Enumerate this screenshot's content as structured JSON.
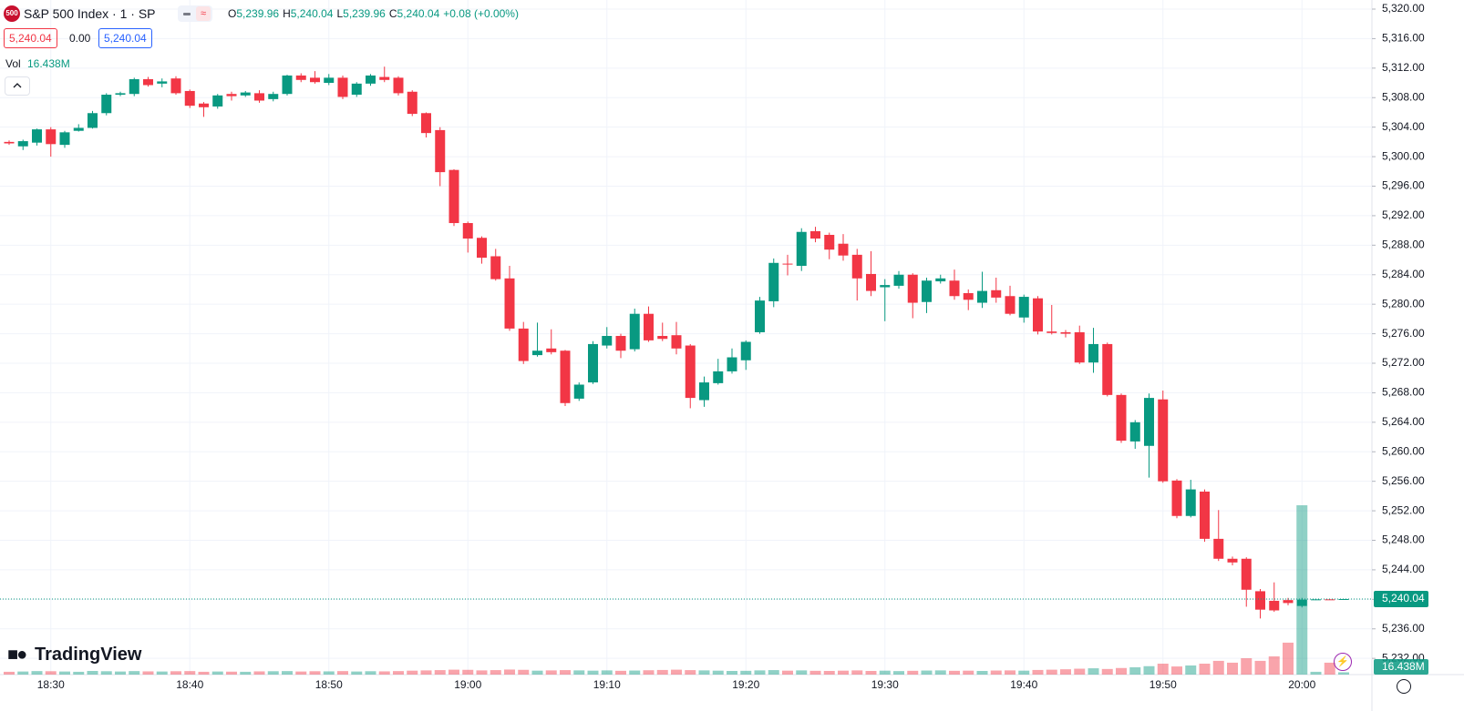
{
  "header": {
    "badge": "500",
    "symbol": "S&P 500 Index · 1 · SP",
    "ohlc": [
      {
        "key": "O",
        "value": "5,239.96"
      },
      {
        "key": "H",
        "value": "5,240.04"
      },
      {
        "key": "L",
        "value": "5,239.96"
      },
      {
        "key": "C",
        "value": "5,240.04"
      }
    ],
    "change": "+0.08 (+0.00%)",
    "bid": "5,240.04",
    "spread": "0.00",
    "ask": "5,240.04",
    "volume_key": "Vol"
  },
  "logo": "TradingView",
  "chart_data": {
    "type": "candlestick",
    "categories": [
      null,
      null,
      null,
      "18:30",
      null,
      null,
      null,
      null,
      null,
      null,
      null,
      null,
      null,
      "18:40",
      null,
      null,
      null,
      null,
      null,
      null,
      null,
      null,
      null,
      "18:50",
      null,
      null,
      null,
      null,
      null,
      null,
      null,
      null,
      null,
      "19:00",
      null,
      null,
      null,
      null,
      null,
      null,
      null,
      null,
      null,
      "19:10",
      null,
      null,
      null,
      null,
      null,
      null,
      null,
      null,
      null,
      "19:20",
      null,
      null,
      null,
      null,
      null,
      null,
      null,
      null,
      null,
      "19:30",
      null,
      null,
      null,
      null,
      null,
      null,
      null,
      null,
      null,
      "19:40",
      null,
      null,
      null,
      null,
      null,
      null,
      null,
      null,
      null,
      "19:50",
      null,
      null,
      null,
      null,
      null,
      null,
      null,
      null,
      null,
      "20:00",
      null,
      null,
      null
    ],
    "open": [
      5302.0,
      5301.4,
      5301.9,
      5303.7,
      5301.6,
      5303.5,
      5303.9,
      5305.9,
      5308.4,
      5308.5,
      5310.5,
      5309.9,
      5310.6,
      5308.9,
      5307.2,
      5306.8,
      5308.5,
      5308.3,
      5308.6,
      5307.8,
      5308.5,
      5311.0,
      5310.7,
      5310.0,
      5310.7,
      5308.4,
      5309.9,
      5310.8,
      5310.7,
      5308.8,
      5305.9,
      5303.6,
      5298.2,
      5291.0,
      5289.0,
      5286.5,
      5283.5,
      5276.7,
      5273.1,
      5274.0,
      5273.7,
      5267.2,
      5269.4,
      5274.4,
      5275.7,
      5273.9,
      5278.7,
      5275.7,
      5275.8,
      5274.4,
      5267.0,
      5269.3,
      5270.9,
      5272.4,
      5276.2,
      5280.4,
      5285.5,
      5285.2,
      5289.9,
      5289.4,
      5288.2,
      5286.7,
      5284.1,
      5282.3,
      5282.5,
      5284.0,
      5280.3,
      5283.1,
      5283.2,
      5281.5,
      5280.2,
      5281.9,
      5281.1,
      5278.2,
      5280.8,
      5276.3,
      5276.2,
      5276.2,
      5272.1,
      5274.6,
      5267.7,
      5261.4,
      5260.8,
      5267.1,
      5256.1,
      5251.3,
      5254.6,
      5248.2,
      5245.5,
      5245.5,
      5241.1,
      5239.8,
      5239.9,
      5239.1,
      5239.96,
      5240.0,
      5239.96
    ],
    "high": [
      5302.2,
      5302.3,
      5303.8,
      5304.0,
      5303.5,
      5304.4,
      5306.2,
      5308.6,
      5308.8,
      5310.7,
      5310.8,
      5310.6,
      5310.9,
      5309.1,
      5307.4,
      5308.5,
      5308.8,
      5308.9,
      5309.0,
      5308.8,
      5311.1,
      5311.3,
      5311.6,
      5311.2,
      5311.0,
      5310.1,
      5311.2,
      5312.2,
      5310.9,
      5309.0,
      5306.0,
      5304.0,
      5298.3,
      5291.2,
      5289.2,
      5287.5,
      5285.2,
      5277.6,
      5277.5,
      5276.6,
      5273.8,
      5269.4,
      5275.0,
      5276.9,
      5276.0,
      5279.4,
      5279.7,
      5277.5,
      5277.6,
      5274.6,
      5270.2,
      5272.6,
      5274.0,
      5275.1,
      5281.0,
      5286.2,
      5286.7,
      5290.3,
      5290.5,
      5289.7,
      5289.5,
      5287.5,
      5287.2,
      5283.4,
      5284.5,
      5284.2,
      5283.6,
      5284.0,
      5284.7,
      5282.0,
      5284.4,
      5283.6,
      5282.5,
      5281.3,
      5281.1,
      5279.9,
      5276.5,
      5277.1,
      5276.8,
      5274.8,
      5267.9,
      5264.3,
      5267.9,
      5268.3,
      5256.3,
      5256.2,
      5254.9,
      5252.1,
      5245.8,
      5245.7,
      5241.4,
      5242.3,
      5240.2,
      5240.2,
      5240.1,
      5240.05,
      5240.04
    ],
    "low": [
      5301.6,
      5300.9,
      5301.5,
      5300.0,
      5301.2,
      5303.4,
      5303.8,
      5305.6,
      5308.2,
      5308.2,
      5309.5,
      5309.4,
      5308.4,
      5306.6,
      5305.4,
      5306.5,
      5307.6,
      5308.1,
      5307.3,
      5307.5,
      5308.3,
      5310.1,
      5309.9,
      5309.7,
      5307.8,
      5308.1,
      5309.6,
      5310.1,
      5308.3,
      5305.5,
      5302.6,
      5296.0,
      5290.6,
      5287.0,
      5285.5,
      5283.2,
      5276.4,
      5271.9,
      5272.9,
      5273.2,
      5266.2,
      5266.9,
      5269.2,
      5274.0,
      5272.7,
      5273.6,
      5274.9,
      5275.0,
      5273.2,
      5265.9,
      5266.1,
      5269.1,
      5270.6,
      5271.1,
      5276.0,
      5279.6,
      5283.9,
      5284.5,
      5288.4,
      5286.1,
      5285.9,
      5280.5,
      5281.1,
      5277.7,
      5282.1,
      5278.1,
      5278.8,
      5282.8,
      5280.6,
      5279.2,
      5279.5,
      5280.2,
      5278.5,
      5277.5,
      5275.9,
      5275.9,
      5275.5,
      5271.9,
      5270.7,
      5267.5,
      5261.2,
      5260.4,
      5256.5,
      5255.8,
      5251.0,
      5251.1,
      5247.8,
      5245.2,
      5244.6,
      5239.0,
      5237.4,
      5238.3,
      5239.2,
      5238.9,
      5239.9,
      5239.95,
      5239.96
    ],
    "close": [
      5301.8,
      5302.1,
      5303.7,
      5301.7,
      5303.3,
      5303.9,
      5305.9,
      5308.4,
      5308.6,
      5310.5,
      5309.7,
      5310.2,
      5308.6,
      5306.9,
      5306.7,
      5308.3,
      5308.2,
      5308.7,
      5307.6,
      5308.5,
      5311.0,
      5310.4,
      5310.1,
      5310.7,
      5308.1,
      5309.9,
      5311.0,
      5310.4,
      5308.6,
      5305.8,
      5303.2,
      5297.9,
      5291.0,
      5288.9,
      5286.3,
      5283.4,
      5276.7,
      5272.3,
      5273.7,
      5273.5,
      5266.6,
      5269.1,
      5274.6,
      5275.7,
      5273.7,
      5278.7,
      5275.1,
      5275.3,
      5274.0,
      5267.3,
      5269.4,
      5270.9,
      5272.8,
      5274.9,
      5280.5,
      5285.6,
      5285.4,
      5289.8,
      5288.9,
      5287.4,
      5286.6,
      5283.5,
      5281.8,
      5282.6,
      5284.0,
      5280.2,
      5283.2,
      5283.5,
      5281.1,
      5280.6,
      5281.8,
      5280.9,
      5278.7,
      5281.0,
      5276.3,
      5276.1,
      5276.0,
      5272.1,
      5274.6,
      5267.7,
      5261.5,
      5264.0,
      5267.3,
      5256.0,
      5251.3,
      5254.9,
      5248.2,
      5245.5,
      5245.0,
      5241.3,
      5238.6,
      5238.5,
      5239.5,
      5239.96,
      5240.0,
      5239.96,
      5240.04
    ],
    "volume": [
      20,
      22,
      25,
      24,
      22,
      20,
      26,
      24,
      22,
      25,
      23,
      22,
      24,
      25,
      20,
      22,
      21,
      20,
      23,
      24,
      25,
      22,
      24,
      23,
      25,
      22,
      24,
      23,
      25,
      28,
      30,
      32,
      35,
      34,
      30,
      32,
      36,
      34,
      28,
      30,
      32,
      30,
      28,
      30,
      27,
      29,
      31,
      33,
      35,
      32,
      30,
      28,
      26,
      27,
      30,
      32,
      28,
      30,
      27,
      26,
      28,
      30,
      26,
      28,
      25,
      27,
      29,
      30,
      27,
      28,
      26,
      29,
      30,
      28,
      33,
      35,
      38,
      42,
      45,
      40,
      47,
      52,
      60,
      78,
      58,
      65,
      78,
      98,
      85,
      117,
      98,
      130,
      228,
      1209,
      20,
      85,
      16.438
    ],
    "volume_label": "16.438M",
    "last_label": "5,240.04",
    "up_color": "#089981",
    "down_color": "#f23645",
    "ylim": [
      5229.8,
      5320
    ],
    "yticks": [
      {
        "value": 5232,
        "label": "5,232.00"
      },
      {
        "value": 5236,
        "label": "5,236.00"
      },
      {
        "value": 5240,
        "label": "5,240.00"
      },
      {
        "value": 5244,
        "label": "5,244.00"
      },
      {
        "value": 5248,
        "label": "5,248.00"
      },
      {
        "value": 5252,
        "label": "5,252.00"
      },
      {
        "value": 5256,
        "label": "5,256.00"
      },
      {
        "value": 5260,
        "label": "5,260.00"
      },
      {
        "value": 5264,
        "label": "5,264.00"
      },
      {
        "value": 5268,
        "label": "5,268.00"
      },
      {
        "value": 5272,
        "label": "5,272.00"
      },
      {
        "value": 5276,
        "label": "5,276.00"
      },
      {
        "value": 5280,
        "label": "5,280.00"
      },
      {
        "value": 5284,
        "label": "5,284.00"
      },
      {
        "value": 5288,
        "label": "5,288.00"
      },
      {
        "value": 5292,
        "label": "5,292.00"
      },
      {
        "value": 5296,
        "label": "5,296.00"
      },
      {
        "value": 5300,
        "label": "5,300.00"
      },
      {
        "value": 5304,
        "label": "5,304.00"
      },
      {
        "value": 5308,
        "label": "5,308.00"
      },
      {
        "value": 5312,
        "label": "5,312.00"
      },
      {
        "value": 5316,
        "label": "5,316.00"
      },
      {
        "value": 5320,
        "label": "5,320.00"
      }
    ],
    "grid": true
  }
}
